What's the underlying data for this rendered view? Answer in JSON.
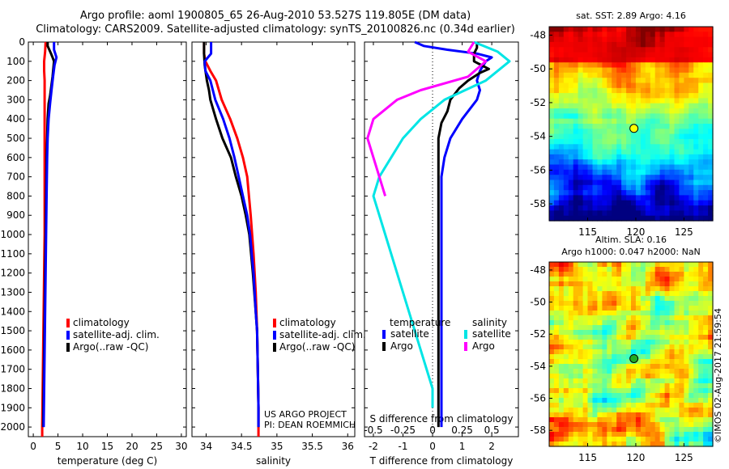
{
  "header": {
    "title_line1": "Argo profile: aoml 1900805_65 26-Aug-2010 53.527S 119.805E (DM data)",
    "title_line2": "Climatology: CARS2009. Satellite-adjusted climatology: synTS_20100826.nc (0.34d earlier)"
  },
  "credits": {
    "project": "US ARGO PROJECT",
    "pi": "PI: DEAN ROEMMICH",
    "imos": "©IMOS 02-Aug-2017 21:59:54"
  },
  "colors": {
    "climatology": "#ff0000",
    "satellite": "#0000ff",
    "argo": "#000000",
    "argo_salinity_diff": "#ff00ff",
    "satellite_salinity_diff": "#00e5e5"
  },
  "chart_data": [
    {
      "type": "line",
      "xlabel": "temperature (deg C)",
      "xlim": [
        -1,
        31
      ],
      "xticks": [
        0,
        5,
        10,
        15,
        20,
        25,
        30
      ],
      "ylim": [
        2050,
        0
      ],
      "yticks": [
        0,
        100,
        200,
        300,
        400,
        500,
        600,
        700,
        800,
        900,
        1000,
        1100,
        1200,
        1300,
        1400,
        1500,
        1600,
        1700,
        1800,
        1900,
        2000
      ],
      "legend": [
        "climatology",
        "satellite-adj. clim.",
        "Argo(..raw -QC)"
      ],
      "legend_position": "lower-center",
      "series": [
        {
          "name": "climatology",
          "color": "#ff0000",
          "points": [
            [
              2.5,
              0
            ],
            [
              2.4,
              50
            ],
            [
              2.2,
              100
            ],
            [
              2.2,
              150
            ],
            [
              2.3,
              200
            ],
            [
              2.3,
              300
            ],
            [
              2.3,
              400
            ],
            [
              2.3,
              500
            ],
            [
              2.3,
              600
            ],
            [
              2.3,
              700
            ],
            [
              2.3,
              800
            ],
            [
              2.3,
              900
            ],
            [
              2.3,
              1000
            ],
            [
              2.2,
              1200
            ],
            [
              2.1,
              1400
            ],
            [
              2.0,
              1600
            ],
            [
              1.9,
              1800
            ],
            [
              1.8,
              2000
            ],
            [
              1.8,
              2050
            ]
          ]
        },
        {
          "name": "Argo(..raw -QC)",
          "color": "#000000",
          "points": [
            [
              2.9,
              0
            ],
            [
              2.9,
              20
            ],
            [
              3.6,
              60
            ],
            [
              3.9,
              80
            ],
            [
              4.2,
              100
            ],
            [
              3.9,
              180
            ],
            [
              3.4,
              280
            ],
            [
              3.1,
              320
            ],
            [
              2.9,
              400
            ],
            [
              2.8,
              500
            ],
            [
              2.7,
              600
            ],
            [
              2.6,
              800
            ],
            [
              2.5,
              1000
            ],
            [
              2.4,
              1200
            ],
            [
              2.3,
              1400
            ],
            [
              2.2,
              1600
            ],
            [
              2.1,
              1800
            ],
            [
              2.0,
              2000
            ]
          ]
        },
        {
          "name": "satellite-adj. clim.",
          "color": "#0000ff",
          "points": [
            [
              4.2,
              0
            ],
            [
              4.2,
              40
            ],
            [
              4.7,
              80
            ],
            [
              4.3,
              120
            ],
            [
              4.0,
              180
            ],
            [
              3.7,
              250
            ],
            [
              3.4,
              320
            ],
            [
              3.1,
              400
            ],
            [
              2.9,
              500
            ],
            [
              2.8,
              600
            ],
            [
              2.7,
              800
            ],
            [
              2.6,
              1000
            ],
            [
              2.5,
              1200
            ],
            [
              2.4,
              1400
            ],
            [
              2.3,
              1600
            ],
            [
              2.2,
              1800
            ],
            [
              2.1,
              2000
            ]
          ]
        }
      ]
    },
    {
      "type": "line",
      "xlabel": "salinity",
      "xlim": [
        33.8,
        36.1
      ],
      "xticks": [
        34,
        34.5,
        35,
        35.5,
        36
      ],
      "xticklabels": [
        "34",
        "34.5",
        "35",
        "35.5",
        "36"
      ],
      "ylim": [
        2050,
        0
      ],
      "legend": [
        "climatology",
        "satellite-adj. clim.",
        "Argo(..raw -QC)"
      ],
      "legend_position": "lower-right",
      "series": [
        {
          "name": "climatology",
          "color": "#ff0000",
          "points": [
            [
              33.97,
              0
            ],
            [
              33.97,
              60
            ],
            [
              33.99,
              100
            ],
            [
              34.06,
              150
            ],
            [
              34.14,
              200
            ],
            [
              34.22,
              300
            ],
            [
              34.34,
              400
            ],
            [
              34.44,
              500
            ],
            [
              34.52,
              600
            ],
            [
              34.58,
              700
            ],
            [
              34.63,
              900
            ],
            [
              34.67,
              1100
            ],
            [
              34.7,
              1300
            ],
            [
              34.72,
              1500
            ],
            [
              34.73,
              1700
            ],
            [
              34.74,
              1900
            ],
            [
              34.74,
              2050
            ]
          ]
        },
        {
          "name": "Argo(..raw -QC)",
          "color": "#000000",
          "points": [
            [
              33.97,
              0
            ],
            [
              33.97,
              60
            ],
            [
              33.98,
              120
            ],
            [
              34.01,
              200
            ],
            [
              34.04,
              250
            ],
            [
              34.06,
              300
            ],
            [
              34.14,
              400
            ],
            [
              34.23,
              500
            ],
            [
              34.35,
              600
            ],
            [
              34.42,
              700
            ],
            [
              34.5,
              800
            ],
            [
              34.56,
              900
            ],
            [
              34.61,
              1000
            ],
            [
              34.66,
              1200
            ],
            [
              34.7,
              1400
            ],
            [
              34.72,
              1500
            ],
            [
              34.73,
              1700
            ],
            [
              34.74,
              1900
            ],
            [
              34.74,
              2000
            ]
          ]
        },
        {
          "name": "satellite-adj. clim.",
          "color": "#0000ff",
          "points": [
            [
              34.07,
              0
            ],
            [
              34.07,
              60
            ],
            [
              33.98,
              100
            ],
            [
              33.99,
              150
            ],
            [
              34.06,
              200
            ],
            [
              34.13,
              300
            ],
            [
              34.24,
              400
            ],
            [
              34.33,
              500
            ],
            [
              34.4,
              600
            ],
            [
              34.46,
              700
            ],
            [
              34.52,
              800
            ],
            [
              34.58,
              900
            ],
            [
              34.62,
              1000
            ],
            [
              34.67,
              1200
            ],
            [
              34.7,
              1400
            ],
            [
              34.72,
              1500
            ],
            [
              34.73,
              1700
            ],
            [
              34.74,
              1900
            ],
            [
              34.74,
              2000
            ]
          ]
        }
      ]
    },
    {
      "type": "line",
      "xlabel": "T difference from climatology",
      "xlabel_top": "S difference from climatology",
      "xlim": [
        -2.3,
        2.9
      ],
      "xticks": [
        -2,
        -1,
        0,
        1,
        2
      ],
      "xticks_s": [
        -0.5,
        -0.25,
        0,
        0.25,
        0.5
      ],
      "xticks_s_labels": [
        "-0.5",
        "-0.25",
        "0",
        "0.25",
        "0.5"
      ],
      "ylim": [
        2050,
        0
      ],
      "zero_line": "dotted",
      "legend_left_title": "temperature",
      "legend_right_title": "salinity",
      "legend": [
        "satellite",
        "Argo",
        "satellite",
        "Argo"
      ],
      "legend_position": "lower-center",
      "series": [
        {
          "name": "temperature satellite",
          "color": "#0000ff",
          "points": [
            [
              -0.6,
              0
            ],
            [
              -0.3,
              20
            ],
            [
              0.5,
              40
            ],
            [
              1.5,
              60
            ],
            [
              2.0,
              80
            ],
            [
              1.8,
              100
            ],
            [
              1.6,
              150
            ],
            [
              1.5,
              200
            ],
            [
              1.6,
              250
            ],
            [
              1.5,
              300
            ],
            [
              1.0,
              400
            ],
            [
              0.6,
              500
            ],
            [
              0.4,
              600
            ],
            [
              0.3,
              700
            ],
            [
              0.3,
              800
            ],
            [
              0.3,
              1000
            ],
            [
              0.3,
              1200
            ],
            [
              0.3,
              1400
            ],
            [
              0.3,
              1600
            ],
            [
              0.3,
              1800
            ],
            [
              0.3,
              2000
            ]
          ]
        },
        {
          "name": "temperature Argo",
          "color": "#000000",
          "points": [
            [
              1.5,
              0
            ],
            [
              1.5,
              30
            ],
            [
              1.4,
              60
            ],
            [
              1.4,
              100
            ],
            [
              1.9,
              140
            ],
            [
              1.6,
              160
            ],
            [
              1.2,
              200
            ],
            [
              0.9,
              240
            ],
            [
              0.6,
              300
            ],
            [
              0.5,
              360
            ],
            [
              0.3,
              420
            ],
            [
              0.2,
              500
            ],
            [
              0.2,
              700
            ],
            [
              0.2,
              900
            ],
            [
              0.2,
              1100
            ],
            [
              0.2,
              1300
            ],
            [
              0.2,
              1500
            ],
            [
              0.2,
              1700
            ],
            [
              0.2,
              1900
            ],
            [
              0.2,
              2000
            ]
          ]
        },
        {
          "name": "salinity satellite",
          "color": "#00e5e5",
          "points": [
            [
              0.35,
              0
            ],
            [
              0.55,
              50
            ],
            [
              0.65,
              100
            ],
            [
              0.45,
              200
            ],
            [
              0.1,
              300
            ],
            [
              -0.1,
              400
            ],
            [
              -0.25,
              500
            ],
            [
              -0.35,
              600
            ],
            [
              -0.45,
              700
            ],
            [
              -0.5,
              800
            ],
            [
              -0.45,
              900
            ],
            [
              -0.4,
              1000
            ],
            [
              -0.3,
              1200
            ],
            [
              -0.2,
              1400
            ],
            [
              -0.1,
              1600
            ],
            [
              0.0,
              1800
            ],
            [
              0.0,
              1900
            ]
          ]
        },
        {
          "name": "salinity Argo",
          "color": "#ff00ff",
          "points": [
            [
              0.35,
              0
            ],
            [
              0.3,
              50
            ],
            [
              0.45,
              100
            ],
            [
              0.3,
              180
            ],
            [
              -0.1,
              250
            ],
            [
              -0.3,
              300
            ],
            [
              -0.4,
              350
            ],
            [
              -0.5,
              400
            ],
            [
              -0.55,
              500
            ],
            [
              -0.5,
              600
            ],
            [
              -0.45,
              700
            ],
            [
              -0.4,
              800
            ]
          ]
        }
      ]
    },
    {
      "type": "heatmap",
      "title": "sat. SST: 2.89  Argo: 4.16",
      "xlim": [
        111,
        128
      ],
      "ylim": [
        -59,
        -47.5
      ],
      "xticks": [
        115,
        120,
        125
      ],
      "yticks": [
        -48,
        -50,
        -52,
        -54,
        -56,
        -58
      ],
      "marker": {
        "lon": 119.805,
        "lat": -53.527,
        "color": "#ffff00"
      }
    },
    {
      "type": "heatmap",
      "title_line1": "Altim. SLA: 0.16",
      "title_line2": "Argo h1000: 0.047 h2000: NaN",
      "xlim": [
        111,
        128
      ],
      "ylim": [
        -59,
        -47.5
      ],
      "xticks": [
        115,
        120,
        125
      ],
      "yticks": [
        -48,
        -50,
        -52,
        -54,
        -56,
        -58
      ],
      "marker": {
        "lon": 119.805,
        "lat": -53.527,
        "color": "#22aa22"
      }
    }
  ]
}
